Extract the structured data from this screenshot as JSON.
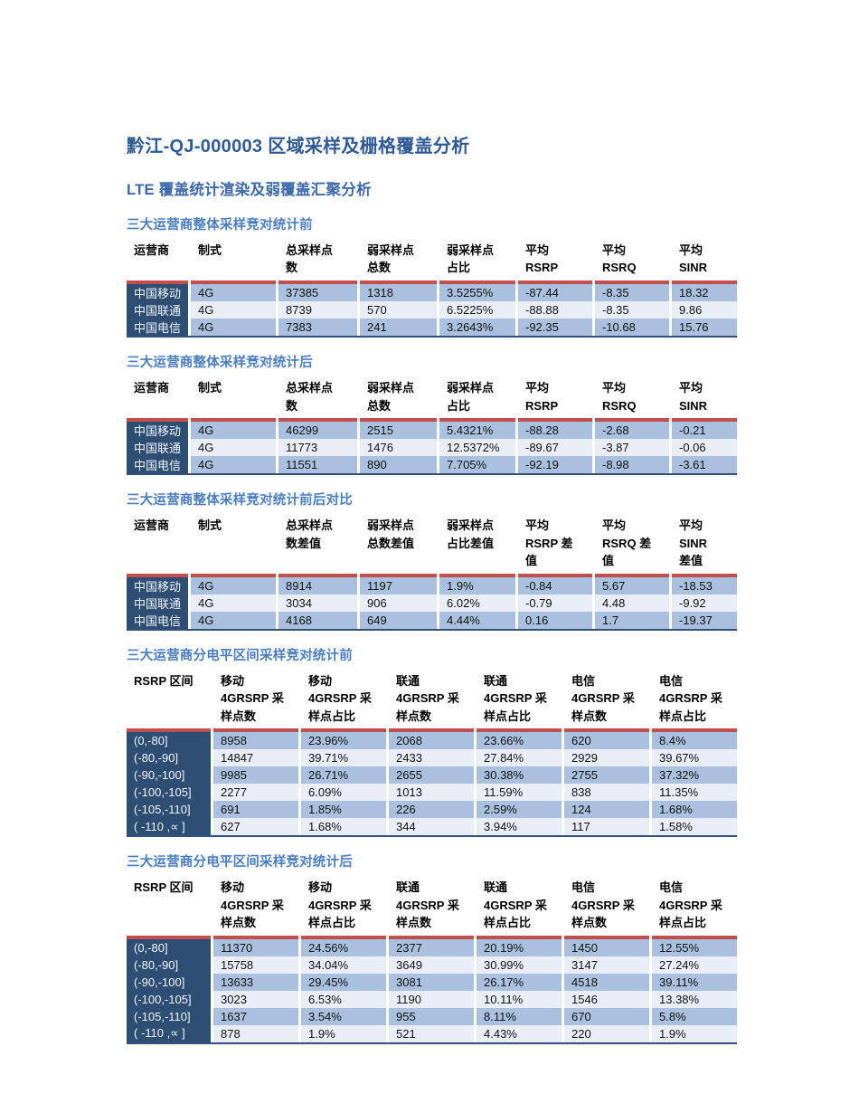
{
  "page": {
    "title": "黔江-QJ-000003 区域采样及栅格覆盖分析",
    "subtitle": "LTE 覆盖统计渲染及弱覆盖汇聚分析"
  },
  "colors": {
    "accent_red": "#C0504D",
    "first_column_navy": "#2F4E74",
    "row_medium_blue": "#A9C1DE",
    "row_light_blue": "#E9EEF6",
    "title_blue": "#2E5B97",
    "section_title_blue": "#4A7EC0"
  },
  "tables": [
    {
      "section_title": "三大运营商整体采样竞对统计前",
      "layout": "wide8",
      "headers": [
        "运营商",
        "制式",
        "总采样点\n数",
        "弱采样点\n总数",
        "弱采样点\n占比",
        "平均\nRSRP",
        "平均\nRSRQ",
        "平均 SINR"
      ],
      "rows": [
        [
          "中国移动",
          "4G",
          "37385",
          "1318",
          "3.5255%",
          "-87.44",
          "-8.35",
          "18.32"
        ],
        [
          "中国联通",
          "4G",
          "8739",
          "570",
          "6.5225%",
          "-88.88",
          "-8.35",
          "9.86"
        ],
        [
          "中国电信",
          "4G",
          "7383",
          "241",
          "3.2643%",
          "-92.35",
          "-10.68",
          "15.76"
        ]
      ]
    },
    {
      "section_title": "三大运营商整体采样竞对统计后",
      "layout": "wide8",
      "headers": [
        "运营商",
        "制式",
        "总采样点\n数",
        "弱采样点\n总数",
        "弱采样点\n占比",
        "平均\nRSRP",
        "平均\nRSRQ",
        "平均 SINR"
      ],
      "rows": [
        [
          "中国移动",
          "4G",
          "46299",
          "2515",
          "5.4321%",
          "-88.28",
          "-2.68",
          "-0.21"
        ],
        [
          "中国联通",
          "4G",
          "11773",
          "1476",
          "12.5372%",
          "-89.67",
          "-3.87",
          "-0.06"
        ],
        [
          "中国电信",
          "4G",
          "11551",
          "890",
          "7.705%",
          "-92.19",
          "-8.98",
          "-3.61"
        ]
      ]
    },
    {
      "section_title": "三大运营商整体采样竞对统计前后对比",
      "layout": "wide8",
      "headers": [
        "运营商",
        "制式",
        "总采样点\n数差值",
        "弱采样点\n总数差值",
        "弱采样点\n占比差值",
        "平均\nRSRP 差\n值",
        "平均\nRSRQ 差\n值",
        "平均 SINR\n差值"
      ],
      "rows": [
        [
          "中国移动",
          "4G",
          "8914",
          "1197",
          "1.9%",
          "-0.84",
          "5.67",
          "-18.53"
        ],
        [
          "中国联通",
          "4G",
          "3034",
          "906",
          "6.02%",
          "-0.79",
          "4.48",
          "-9.92"
        ],
        [
          "中国电信",
          "4G",
          "4168",
          "649",
          "4.44%",
          "0.16",
          "1.7",
          "-19.37"
        ]
      ]
    },
    {
      "section_title": "三大运营商分电平区间采样竞对统计前",
      "layout": "wide7",
      "headers": [
        "RSRP 区间",
        "移动\n4GRSRP 采\n样点数",
        "移动\n4GRSRP 采\n样点占比",
        "联通\n4GRSRP 采\n样点数",
        "联通\n4GRSRP 采\n样点占比",
        "电信\n4GRSRP 采\n样点数",
        "电信\n4GRSRP 采\n样点占比"
      ],
      "rows": [
        [
          "(0,-80]",
          "8958",
          "23.96%",
          "2068",
          "23.66%",
          "620",
          "8.4%"
        ],
        [
          "(-80,-90]",
          "14847",
          "39.71%",
          "2433",
          "27.84%",
          "2929",
          "39.67%"
        ],
        [
          "(-90,-100]",
          "9985",
          "26.71%",
          "2655",
          "30.38%",
          "2755",
          "37.32%"
        ],
        [
          "(-100,-105]",
          "2277",
          "6.09%",
          "1013",
          "11.59%",
          "838",
          "11.35%"
        ],
        [
          "(-105,-110]",
          "691",
          "1.85%",
          "226",
          "2.59%",
          "124",
          "1.68%"
        ],
        [
          "( -110 ,∝  ]",
          "627",
          "1.68%",
          "344",
          "3.94%",
          "117",
          "1.58%"
        ]
      ]
    },
    {
      "section_title": "三大运营商分电平区间采样竞对统计后",
      "layout": "wide7",
      "headers": [
        "RSRP 区间",
        "移动\n4GRSRP 采\n样点数",
        "移动\n4GRSRP 采\n样点占比",
        "联通\n4GRSRP 采\n样点数",
        "联通\n4GRSRP 采\n样点占比",
        "电信\n4GRSRP 采\n样点数",
        "电信\n4GRSRP 采\n样点占比"
      ],
      "rows": [
        [
          "(0,-80]",
          "11370",
          "24.56%",
          "2377",
          "20.19%",
          "1450",
          "12.55%"
        ],
        [
          "(-80,-90]",
          "15758",
          "34.04%",
          "3649",
          "30.99%",
          "3147",
          "27.24%"
        ],
        [
          "(-90,-100]",
          "13633",
          "29.45%",
          "3081",
          "26.17%",
          "4518",
          "39.11%"
        ],
        [
          "(-100,-105]",
          "3023",
          "6.53%",
          "1190",
          "10.11%",
          "1546",
          "13.38%"
        ],
        [
          "(-105,-110]",
          "1637",
          "3.54%",
          "955",
          "8.11%",
          "670",
          "5.8%"
        ],
        [
          "( -110 ,∝  ]",
          "878",
          "1.9%",
          "521",
          "4.43%",
          "220",
          "1.9%"
        ]
      ]
    }
  ]
}
